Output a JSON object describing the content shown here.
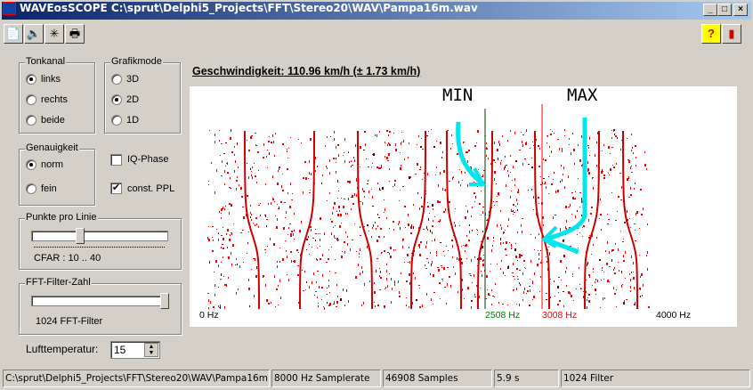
{
  "window": {
    "title": "WAVEosSCOPE  C:\\sprut\\Delphi5_Projects\\FFT\\Stereo20\\WAV\\Pampa16m.wav",
    "min": "_",
    "max": "□",
    "close": "×"
  },
  "toolbar": {
    "open_icon": "open-file-icon",
    "audio_icon": "speaker-icon",
    "graph_icon": "graph-icon",
    "print_icon": "printer-icon",
    "help": "?",
    "exit_icon": "exit-door-icon"
  },
  "tonkanal": {
    "label": "Tonkanal",
    "options": [
      "links",
      "rechts",
      "beide"
    ],
    "selected": 0
  },
  "grafikmode": {
    "label": "Grafikmode",
    "options": [
      "3D",
      "2D",
      "1D"
    ],
    "selected": 1
  },
  "genauigkeit": {
    "label": "Genauigkeit",
    "options": [
      "norm",
      "fein"
    ],
    "selected": 0
  },
  "checks": {
    "iq_phase": {
      "label": "IQ-Phase",
      "checked": false
    },
    "const_ppl": {
      "label": "const. PPL",
      "checked": true
    }
  },
  "punkte": {
    "label": "Punkte pro Linie",
    "value_fraction": 0.35,
    "caption": "CFAR : 10 .. 40"
  },
  "fft": {
    "label": "FFT-Filter-Zahl",
    "value_fraction": 1.0,
    "caption": "1024 FFT-Filter"
  },
  "luft": {
    "label": "Lufttemperatur:",
    "value": "15"
  },
  "speed": "Geschwindigkeit: 110.96 km/h (± 1.73 km/h)",
  "plot": {
    "min_label": "MIN",
    "max_label": "MAX",
    "x_start": "0 Hz",
    "x_end": "4000 Hz",
    "min_freq": "2508 Hz",
    "max_freq": "3008 Hz",
    "min_color": "#008000",
    "max_color": "#ff0000",
    "trace_color": "#cc0000",
    "arrow_color": "#00e5ee"
  },
  "statusbar": [
    "C:\\sprut\\Delphi5_Projects\\FFT\\Stereo20\\WAV\\Pampa16m.wav",
    "8000 Hz Samplerate",
    "46908 Samples",
    "5.9 s",
    "1024 Filter"
  ]
}
